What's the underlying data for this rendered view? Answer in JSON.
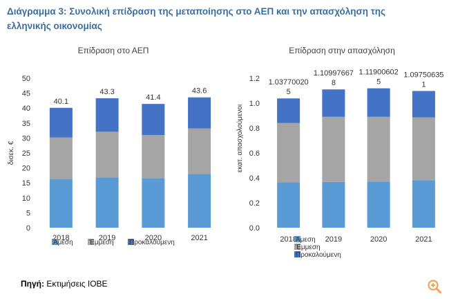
{
  "figure": {
    "title_line1": "Διάγραμμα 3: Συνολική επίδραση της μεταποίησης στο ΑΕΠ και την απασχόληση της",
    "title_line2": "ελληνικής οικονομίας",
    "source_label": "Πηγή:",
    "source_text": "Εκτιμήσεις ΙΟΒΕ"
  },
  "colors": {
    "direct": "#5b9bd5",
    "indirect": "#a5a5a5",
    "induced": "#4472c4",
    "title": "#3b6e9e",
    "zoom_icon": "#f4a259"
  },
  "icons": {
    "zoom": "zoom-in-icon"
  },
  "chart_data": [
    {
      "type": "bar",
      "stacked": true,
      "title": "Επίδραση στο ΑΕΠ",
      "xlabel": "",
      "ylabel": "δισεκ. €",
      "categories": [
        "2018",
        "2019",
        "2020",
        "2021"
      ],
      "ylim": [
        0,
        50
      ],
      "yticks": [
        "0",
        "5",
        "10",
        "15",
        "20",
        "25",
        "30",
        "35",
        "40",
        "45",
        "50"
      ],
      "ytick_values": [
        0,
        5,
        10,
        15,
        20,
        25,
        30,
        35,
        40,
        45,
        50
      ],
      "grid": false,
      "legend": "bottom",
      "series": [
        {
          "name": "Άμεση",
          "color": "#5b9bd5",
          "values": [
            16.3,
            16.8,
            16.6,
            18.0
          ]
        },
        {
          "name": "Έμμεση",
          "color": "#a5a5a5",
          "values": [
            13.9,
            15.3,
            14.4,
            15.2
          ]
        },
        {
          "name": "Προκαλούμενη",
          "color": "#4472c4",
          "values": [
            9.9,
            11.2,
            10.4,
            10.4
          ]
        }
      ],
      "totals": [
        40.1,
        43.3,
        41.4,
        43.6
      ],
      "total_labels": [
        [
          "40.1"
        ],
        [
          "43.3"
        ],
        [
          "41.4"
        ],
        [
          "43.6"
        ]
      ]
    },
    {
      "type": "bar",
      "stacked": true,
      "title": "Επίδραση στην απασχόληση",
      "xlabel": "",
      "ylabel": "εκατ. απασχολούμενοι",
      "categories": [
        "2018",
        "2019",
        "2020",
        "2021"
      ],
      "ylim": [
        0,
        1.2
      ],
      "yticks": [
        "0.0",
        "0.2",
        "0.4",
        "0.6",
        "0.8",
        "1.0",
        "1.2"
      ],
      "ytick_values": [
        0,
        0.2,
        0.4,
        0.6,
        0.8,
        1.0,
        1.2
      ],
      "grid": false,
      "legend": "bottom",
      "series": [
        {
          "name": "Άμεση",
          "color": "#5b9bd5",
          "values": [
            0.365,
            0.368,
            0.37,
            0.382
          ]
        },
        {
          "name": "Έμμεση",
          "color": "#a5a5a5",
          "values": [
            0.475,
            0.522,
            0.52,
            0.503
          ]
        },
        {
          "name": "Προκαλούμενη",
          "color": "#4472c4",
          "values": [
            0.1977,
            0.22,
            0.229,
            0.2125
          ]
        }
      ],
      "totals": [
        1.037700205,
        1.109976678,
        1.119006025,
        1.097506351
      ],
      "total_labels": [
        [
          "1.03770020",
          "5"
        ],
        [
          "1.10997667",
          "8"
        ],
        [
          "1.11900602",
          "5"
        ],
        [
          "1.09750635",
          "1"
        ]
      ]
    }
  ]
}
